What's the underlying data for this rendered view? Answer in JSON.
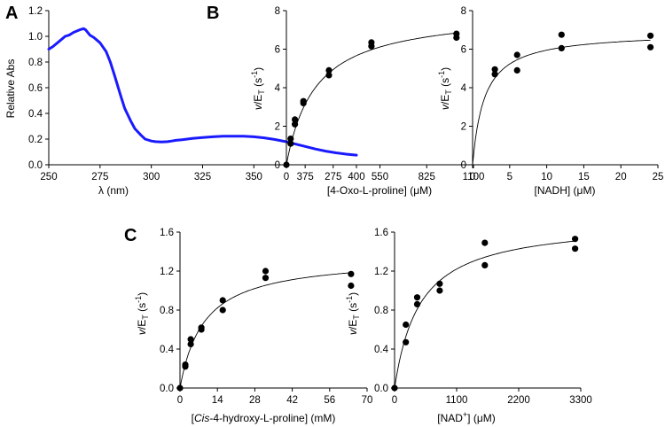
{
  "chart_data": [
    {
      "id": "A",
      "panel_label": "A",
      "type": "line",
      "xlabel": "λ (nm)",
      "ylabel": "Relative Abs",
      "xlim": [
        250,
        400
      ],
      "ylim": [
        0,
        1.2
      ],
      "xticks": [
        250,
        275,
        300,
        325,
        350,
        375,
        400
      ],
      "xtick_labels": [
        "250",
        "275",
        "300",
        "325",
        "350",
        "375",
        "400"
      ],
      "yticks": [
        0,
        0.2,
        0.4,
        0.6,
        0.8,
        1.0,
        1.2
      ],
      "ytick_labels": [
        "0.0",
        "0.2",
        "0.4",
        "0.6",
        "0.8",
        "1.0",
        "1.2"
      ],
      "series": [
        {
          "name": "spectrum",
          "color": "#1a1aff",
          "x": [
            250,
            252,
            255,
            258,
            260,
            262,
            265,
            267,
            268,
            270,
            272,
            275,
            278,
            280,
            282,
            285,
            287,
            290,
            292,
            295,
            297,
            300,
            302,
            305,
            308,
            310,
            312,
            315,
            320,
            325,
            330,
            335,
            340,
            345,
            350,
            355,
            360,
            365,
            370,
            375,
            380,
            385,
            390,
            395,
            400
          ],
          "y": [
            0.9,
            0.92,
            0.96,
            1.0,
            1.01,
            1.03,
            1.05,
            1.06,
            1.05,
            1.01,
            0.99,
            0.95,
            0.88,
            0.8,
            0.7,
            0.54,
            0.44,
            0.34,
            0.28,
            0.23,
            0.2,
            0.185,
            0.18,
            0.178,
            0.18,
            0.185,
            0.19,
            0.195,
            0.205,
            0.212,
            0.218,
            0.222,
            0.223,
            0.222,
            0.218,
            0.21,
            0.197,
            0.182,
            0.163,
            0.143,
            0.123,
            0.106,
            0.093,
            0.083,
            0.075
          ]
        }
      ]
    },
    {
      "id": "B1",
      "panel_label": "B",
      "type": "scatter",
      "xlabel": "[4-Oxo-L-proline] (μM)",
      "ylabel_prefix": "v",
      "ylabel_mid": "/E",
      "ylabel_sub": "T",
      "ylabel_suffix": " (s",
      "ylabel_sup": "-1",
      "ylabel_close": ")",
      "xlim": [
        0,
        1100
      ],
      "ylim": [
        0,
        8
      ],
      "xticks": [
        0,
        275,
        550,
        825,
        1100
      ],
      "xtick_labels": [
        "0",
        "275",
        "550",
        "825",
        "1100"
      ],
      "yticks": [
        0,
        2,
        4,
        6,
        8
      ],
      "ytick_labels": [
        "0",
        "2",
        "4",
        "6",
        "8"
      ],
      "points": {
        "x": [
          0,
          25,
          25,
          50,
          50,
          100,
          100,
          250,
          250,
          500,
          500,
          1000,
          1000
        ],
        "y": [
          0.0,
          1.1,
          1.35,
          2.1,
          2.35,
          3.2,
          3.3,
          4.65,
          4.9,
          6.15,
          6.35,
          6.6,
          6.8
        ]
      },
      "fit": {
        "model": "michaelis-menten",
        "vmax": 8.0,
        "km": 170
      }
    },
    {
      "id": "B2",
      "panel_label": "",
      "type": "scatter",
      "xlabel_pre": "[NADH] (",
      "xlabel_mu": "μ",
      "xlabel_post": "M)",
      "ylabel_prefix": "v",
      "ylabel_mid": "/E",
      "ylabel_sub": "T",
      "ylabel_suffix": " (s",
      "ylabel_sup": "-1",
      "ylabel_close": ")",
      "xlim": [
        0,
        25
      ],
      "ylim": [
        0,
        8
      ],
      "xticks": [
        0,
        5,
        10,
        15,
        20,
        25
      ],
      "xtick_labels": [
        "0",
        "5",
        "10",
        "15",
        "20",
        "25"
      ],
      "yticks": [
        0,
        2,
        4,
        6,
        8
      ],
      "ytick_labels": [
        "0",
        "2",
        "4",
        "6",
        "8"
      ],
      "points": {
        "x": [
          3,
          3,
          6,
          6,
          12,
          12,
          24,
          24
        ],
        "y": [
          4.7,
          4.95,
          4.9,
          5.7,
          6.05,
          6.75,
          6.1,
          6.7
        ]
      },
      "fit": {
        "model": "michaelis-menten",
        "vmax": 6.9,
        "km": 1.6
      }
    },
    {
      "id": "C1",
      "panel_label": "C",
      "type": "scatter",
      "xlabel_pre": "[",
      "xlabel_italic": "Cis",
      "xlabel_post": "-4-hydroxy-L-proline] (mM)",
      "ylabel_prefix": "v",
      "ylabel_mid": "/E",
      "ylabel_sub": "T",
      "ylabel_suffix": " (s",
      "ylabel_sup": "-1",
      "ylabel_close": ")",
      "xlim": [
        0,
        70
      ],
      "ylim": [
        0,
        1.6
      ],
      "xticks": [
        0,
        14,
        28,
        42,
        56,
        70
      ],
      "xtick_labels": [
        "0",
        "14",
        "28",
        "42",
        "56",
        "70"
      ],
      "yticks": [
        0,
        0.4,
        0.8,
        1.2,
        1.6
      ],
      "ytick_labels": [
        "0.0",
        "0.4",
        "0.8",
        "1.2",
        "1.6"
      ],
      "points": {
        "x": [
          0,
          2,
          2,
          4,
          4,
          8,
          8,
          16,
          16,
          32,
          32,
          64,
          64
        ],
        "y": [
          0.0,
          0.22,
          0.24,
          0.45,
          0.5,
          0.6,
          0.62,
          0.8,
          0.9,
          1.13,
          1.2,
          1.05,
          1.17
        ]
      },
      "fit": {
        "model": "michaelis-menten",
        "vmax": 1.35,
        "km": 9
      }
    },
    {
      "id": "C2",
      "panel_label": "",
      "type": "scatter",
      "xlabel_pre": "[NAD",
      "xlabel_sup": "+",
      "xlabel_post": "] (μM)",
      "ylabel_prefix": "v",
      "ylabel_mid": "/E",
      "ylabel_sub": "T",
      "ylabel_suffix": " (s",
      "ylabel_sup": "-1",
      "ylabel_close": ")",
      "xlim": [
        0,
        3300
      ],
      "ylim": [
        0,
        1.6
      ],
      "xticks": [
        0,
        1100,
        2200,
        3300
      ],
      "xtick_labels": [
        "0",
        "1100",
        "2200",
        "3300"
      ],
      "yticks": [
        0,
        0.4,
        0.8,
        1.2,
        1.6
      ],
      "ytick_labels": [
        "0.0",
        "0.4",
        "0.8",
        "1.2",
        "1.6"
      ],
      "points": {
        "x": [
          0,
          200,
          200,
          400,
          400,
          800,
          800,
          1600,
          1600,
          3200,
          3200
        ],
        "y": [
          0.0,
          0.47,
          0.65,
          0.86,
          0.93,
          1.0,
          1.07,
          1.26,
          1.49,
          1.43,
          1.53
        ]
      },
      "fit": {
        "model": "michaelis-menten",
        "vmax": 1.72,
        "km": 450
      }
    }
  ]
}
